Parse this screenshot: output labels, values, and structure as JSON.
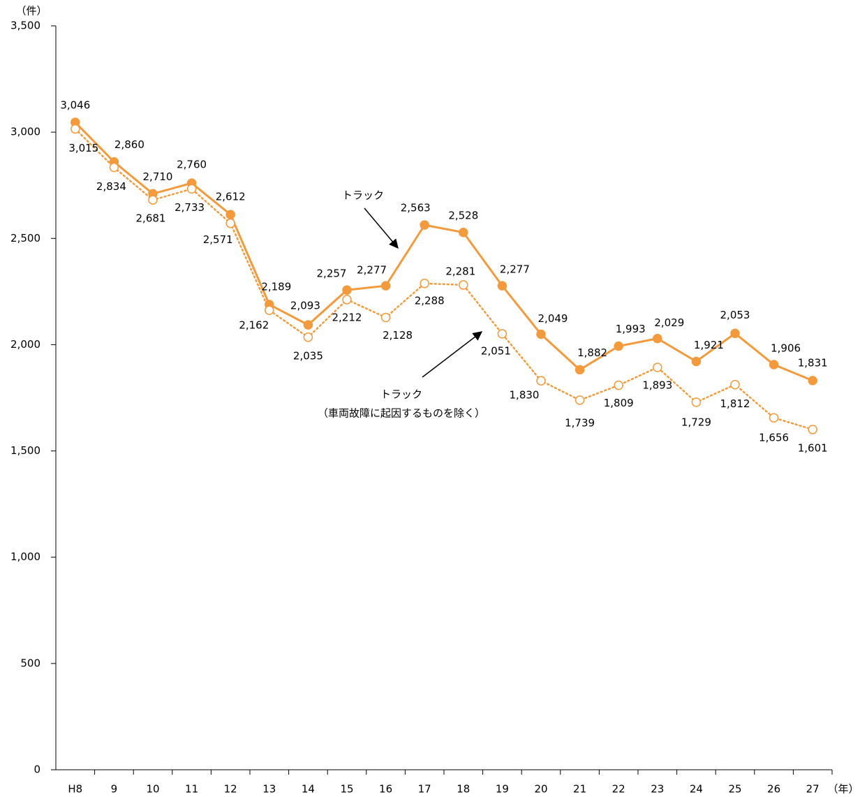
{
  "chart_data": {
    "type": "line",
    "y_unit": "（件）",
    "x_unit": "（年）",
    "categories": [
      "H8",
      "9",
      "10",
      "11",
      "12",
      "13",
      "14",
      "15",
      "16",
      "17",
      "18",
      "19",
      "20",
      "21",
      "22",
      "23",
      "24",
      "25",
      "26",
      "27"
    ],
    "series": [
      {
        "name": "トラック",
        "color": "#f39a3c",
        "marker": "filled",
        "line_style": "solid",
        "values": [
          3046,
          2860,
          2710,
          2760,
          2612,
          2189,
          2093,
          2257,
          2277,
          2563,
          2528,
          2277,
          2049,
          1882,
          1993,
          2029,
          1921,
          2053,
          1906,
          1831
        ],
        "value_labels": [
          "3,046",
          "2,860",
          "2,710",
          "2,760",
          "2,612",
          "2,189",
          "2,093",
          "2,257",
          "2,277",
          "2,563",
          "2,528",
          "2,277",
          "2,049",
          "1,882",
          "1,993",
          "2,029",
          "1,921",
          "2,053",
          "1,906",
          "1,831"
        ]
      },
      {
        "name": "トラック",
        "name_sub": "（車両故障に起因するものを除く）",
        "color": "#f39a3c",
        "marker": "open",
        "line_style": "dotted",
        "values": [
          3015,
          2834,
          2681,
          2733,
          2571,
          2162,
          2035,
          2212,
          2128,
          2288,
          2281,
          2051,
          1830,
          1739,
          1809,
          1893,
          1729,
          1812,
          1656,
          1601
        ],
        "value_labels": [
          "3,015",
          "2,834",
          "2,681",
          "2,733",
          "2,571",
          "2,162",
          "2,035",
          "2,212",
          "2,128",
          "2,288",
          "2,281",
          "2,051",
          "1,830",
          "1,739",
          "1,809",
          "1,893",
          "1,729",
          "1,812",
          "1,656",
          "1,601"
        ]
      }
    ],
    "ylim": [
      0,
      3500
    ],
    "yticks": [
      0,
      500,
      {
        "value": 1000,
        "label": "1,000"
      },
      {
        "value": 1500,
        "label": "1,500"
      },
      {
        "value": 2000,
        "label": "2,000"
      },
      {
        "value": 2500,
        "label": "2,500"
      },
      {
        "value": 3000,
        "label": "3,000"
      },
      {
        "value": 3500,
        "label": "3,500"
      }
    ],
    "grid": false
  }
}
